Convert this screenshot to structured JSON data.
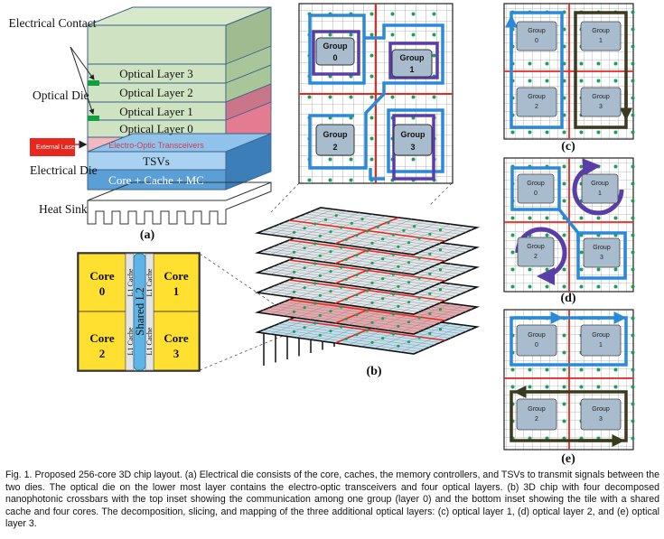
{
  "panel_a": {
    "electrical_contact": "Electrical Contact",
    "optical_die": "Optical Die",
    "electrical_die": "Electrical Die",
    "heat_sink": "Heat Sink",
    "external_laser": "External Laser",
    "layers": [
      "Optical Layer 3",
      "Optical Layer 2",
      "Optical Layer 1",
      "Optical Layer 0"
    ],
    "transceivers": "Electro-Optic Transceivers",
    "tsvs": "TSVs",
    "core_cache_mc": "Core + Cache + MC",
    "label": "(a)"
  },
  "tile": {
    "cores": [
      {
        "name": "Core",
        "num": "0"
      },
      {
        "name": "Core",
        "num": "1"
      },
      {
        "name": "Core",
        "num": "2"
      },
      {
        "name": "Core",
        "num": "3"
      }
    ],
    "l1_cache": "L1 Cache",
    "shared_l2": "Shared L2"
  },
  "panel_b": {
    "groups": [
      {
        "name": "Group",
        "num": "0"
      },
      {
        "name": "Group",
        "num": "1"
      },
      {
        "name": "Group",
        "num": "2"
      },
      {
        "name": "Group",
        "num": "3"
      }
    ],
    "label": "(b)"
  },
  "small_groups": [
    {
      "name": "Group",
      "num": "0"
    },
    {
      "name": "Group",
      "num": "1"
    },
    {
      "name": "Group",
      "num": "2"
    },
    {
      "name": "Group",
      "num": "3"
    }
  ],
  "panel_labels": {
    "c": "(c)",
    "d": "(d)",
    "e": "(e)"
  },
  "caption": "Fig. 1. Proposed 256-core 3D chip layout. (a) Electrical die consists of the core, caches, the memory controllers, and TSVs to transmit signals between the two dies. The optical die on the lower most layer contains the electro-optic transceivers and four optical layers. (b) 3D chip with four decomposed nanophotonic crossbars with the top inset showing the communication among one group (layer 0) and the bottom inset showing the tile with a shared cache and four cores. The decomposition, slicing, and mapping of the three additional optical layers: (c) optical layer 1, (d) optical layer 2, and (e) optical layer 3.",
  "colors": {
    "optical_layer": "#cfe3c2",
    "transceiver": "#f2b8c0",
    "die_blue": "#5a9fd6",
    "core_yellow": "#ffe030",
    "l2_blue": "#5fb4e6",
    "group_box": "#a8bccd",
    "red_line": "#e8281e",
    "blue_path": "#2b8ad8",
    "purple_path": "#5a3ea8",
    "dark_path": "#3a3a1e",
    "green_dot": "#1aa05a"
  }
}
